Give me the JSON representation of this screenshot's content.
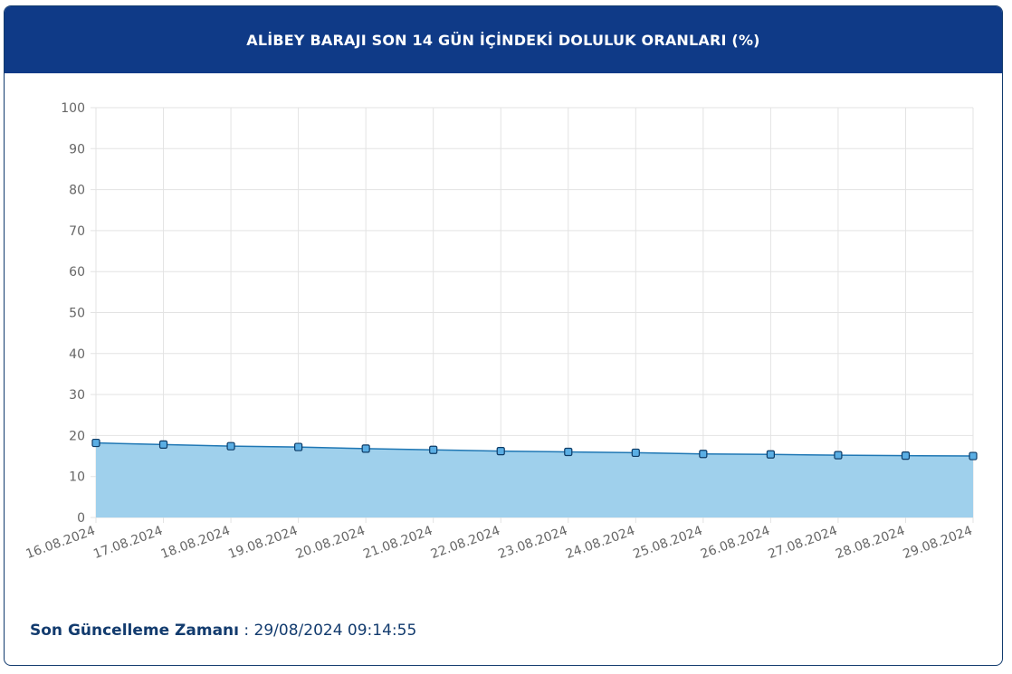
{
  "title": "ALİBEY BARAJI SON 14 GÜN İÇİNDEKİ DOLULUK ORANLARI (%)",
  "update": {
    "label": "Son Güncelleme Zamanı",
    "separator": " : ",
    "value": "29/08/2024 09:14:55"
  },
  "colors": {
    "header": "#0f3a87",
    "line": "#1f77b4",
    "fill": "#9fd0ec",
    "marker": "#5aaee4",
    "marker_border": "#0d3b66",
    "grid": "#e3e3e3",
    "axis_text": "#666666"
  },
  "chart_data": {
    "type": "area",
    "title": "ALİBEY BARAJI SON 14 GÜN İÇİNDEKİ DOLULUK ORANLARI (%)",
    "xlabel": "",
    "ylabel": "",
    "categories": [
      "16.08.2024",
      "17.08.2024",
      "18.08.2024",
      "19.08.2024",
      "20.08.2024",
      "21.08.2024",
      "22.08.2024",
      "23.08.2024",
      "24.08.2024",
      "25.08.2024",
      "26.08.2024",
      "27.08.2024",
      "28.08.2024",
      "29.08.2024"
    ],
    "series": [
      {
        "values": [
          18.2,
          17.8,
          17.4,
          17.2,
          16.8,
          16.5,
          16.2,
          16.0,
          15.8,
          15.5,
          15.4,
          15.2,
          15.1,
          15.0
        ]
      }
    ],
    "ylim": [
      0,
      100
    ],
    "yticks": [
      0,
      10,
      20,
      30,
      40,
      50,
      60,
      70,
      80,
      90,
      100
    ],
    "grid": true,
    "legend": "none",
    "marker": "square"
  }
}
